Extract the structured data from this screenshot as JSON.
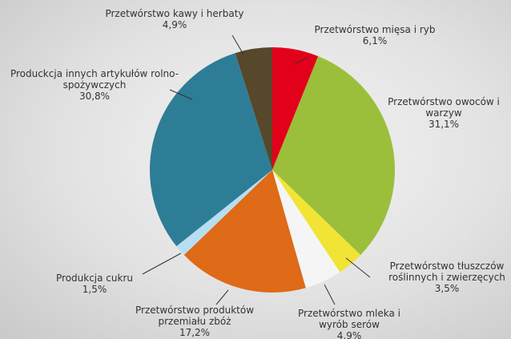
{
  "chart_data": {
    "type": "pie",
    "categories": [
      "Przetwórstwo mięsa i ryb",
      "Przetwórstwo owoców i warzyw",
      "Przetwórstwo tłuszczów roślinnych i zwierzęcych",
      "Przetwórstwo mleka i wyrób serów",
      "Przetwórstwo produktów przemiału zbóż",
      "Produkcja cukru",
      "Produckcja innych artykułów rolno-spożywczych",
      "Przetwórstwo kawy i herbaty"
    ],
    "values": [
      6.1,
      31.1,
      3.5,
      4.9,
      17.2,
      1.5,
      30.8,
      4.9
    ],
    "value_labels": [
      "6,1%",
      "31,1%",
      "3,5%",
      "4,9%",
      "17,2%",
      "1,5%",
      "30,8%",
      "4,9%"
    ],
    "colors": [
      "#e2001a",
      "#9bbf3b",
      "#f1e434",
      "#f5f5f5",
      "#df6a17",
      "#b8def2",
      "#2e7d96",
      "#57472b"
    ]
  }
}
